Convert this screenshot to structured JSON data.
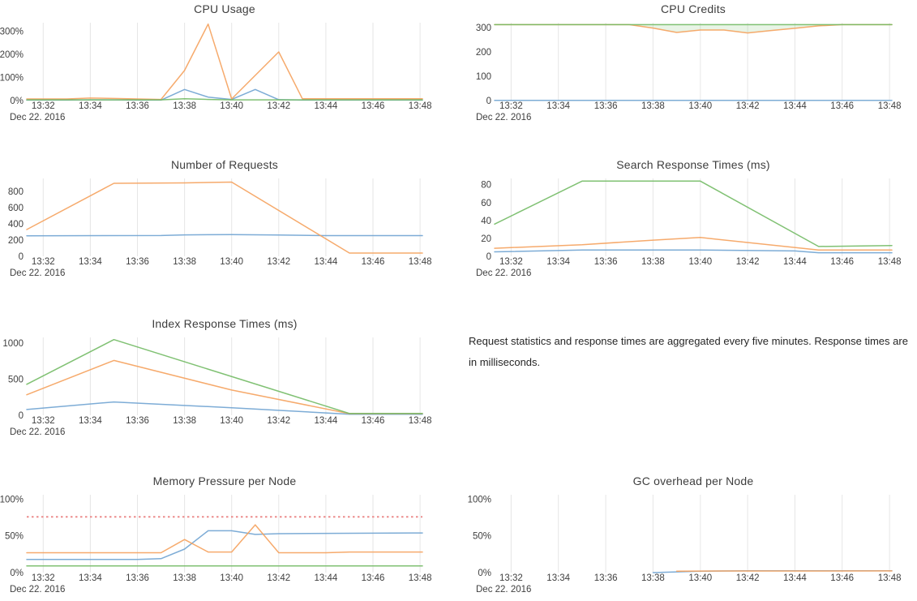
{
  "note": {
    "text": "Request statistics and response times are aggregated every five minutes. Response times are in milliseconds."
  },
  "colors": {
    "blue": "#6fa3d2",
    "orange": "#f5a15c",
    "green": "#72ba64",
    "red": "#ec8b8b",
    "grid": "#e6e6e6",
    "axis_text": "#3f3f3f",
    "title_text": "#3e3e3e"
  },
  "x_axis": {
    "date_label": "Dec 22. 2016",
    "range_minutes": [
      31.3,
      48.1
    ],
    "ticks": [
      {
        "minute": 32,
        "label": "13:32"
      },
      {
        "minute": 34,
        "label": "13:34"
      },
      {
        "minute": 36,
        "label": "13:36"
      },
      {
        "minute": 38,
        "label": "13:38"
      },
      {
        "minute": 40,
        "label": "13:40"
      },
      {
        "minute": 42,
        "label": "13:42"
      },
      {
        "minute": 44,
        "label": "13:44"
      },
      {
        "minute": 46,
        "label": "13:46"
      },
      {
        "minute": 48,
        "label": "13:48"
      }
    ]
  },
  "chart_data": [
    {
      "type": "line",
      "title": "CPU Usage",
      "grid": "vertical-only",
      "legend": "none",
      "ylim": [
        0,
        336
      ],
      "yticks": [
        {
          "v": 0,
          "label": "0%"
        },
        {
          "v": 100,
          "label": "100%"
        },
        {
          "v": 200,
          "label": "200%"
        },
        {
          "v": 300,
          "label": "300%"
        }
      ],
      "series": [
        {
          "name": "series-blue",
          "color": "blue",
          "points": [
            [
              31.3,
              2
            ],
            [
              33,
              2
            ],
            [
              34,
              3
            ],
            [
              36,
              2
            ],
            [
              37,
              2
            ],
            [
              38,
              48
            ],
            [
              39,
              15
            ],
            [
              40,
              5
            ],
            [
              41,
              48
            ],
            [
              42,
              4
            ],
            [
              43,
              2
            ],
            [
              48.1,
              2
            ]
          ]
        },
        {
          "name": "series-orange",
          "color": "orange",
          "points": [
            [
              31.3,
              7
            ],
            [
              33,
              7
            ],
            [
              34,
              11
            ],
            [
              35,
              9
            ],
            [
              36,
              7
            ],
            [
              37,
              5
            ],
            [
              38,
              130
            ],
            [
              39,
              330
            ],
            [
              40,
              7
            ],
            [
              42,
              210
            ],
            [
              43,
              8
            ],
            [
              48.1,
              8
            ]
          ]
        },
        {
          "name": "series-green",
          "color": "green",
          "points": [
            [
              31.3,
              3
            ],
            [
              37,
              3
            ],
            [
              38,
              8
            ],
            [
              39,
              5
            ],
            [
              40,
              3
            ],
            [
              48.1,
              3
            ]
          ]
        }
      ]
    },
    {
      "type": "line",
      "title": "CPU Credits",
      "grid": "vertical-only",
      "legend": "none",
      "ylim": [
        0,
        320
      ],
      "yticks": [
        {
          "v": 0,
          "label": "0"
        },
        {
          "v": 100,
          "label": "100"
        },
        {
          "v": 200,
          "label": "200"
        },
        {
          "v": 300,
          "label": "300"
        }
      ],
      "fill_between": {
        "upper": 2,
        "lower": 1,
        "color": "rgba(114,186,100,0.16)"
      },
      "series": [
        {
          "name": "series-blue",
          "color": "blue",
          "points": [
            [
              31.3,
              1
            ],
            [
              48.1,
              1
            ]
          ]
        },
        {
          "name": "series-orange",
          "color": "orange",
          "points": [
            [
              31.3,
              312
            ],
            [
              37,
              312
            ],
            [
              38,
              298
            ],
            [
              39,
              280
            ],
            [
              40,
              290
            ],
            [
              41,
              290
            ],
            [
              42,
              278
            ],
            [
              43,
              288
            ],
            [
              44,
              297
            ],
            [
              45,
              307
            ],
            [
              46,
              312
            ],
            [
              48.1,
              312
            ]
          ]
        },
        {
          "name": "series-green",
          "color": "green",
          "points": [
            [
              31.3,
              312
            ],
            [
              48.1,
              312
            ]
          ]
        }
      ]
    },
    {
      "type": "line",
      "title": "Number of Requests",
      "grid": "vertical-only",
      "legend": "none",
      "ylim": [
        0,
        960
      ],
      "yticks": [
        {
          "v": 0,
          "label": "0"
        },
        {
          "v": 200,
          "label": "200"
        },
        {
          "v": 400,
          "label": "400"
        },
        {
          "v": 600,
          "label": "600"
        },
        {
          "v": 800,
          "label": "800"
        }
      ],
      "series": [
        {
          "name": "series-blue",
          "color": "blue",
          "points": [
            [
              31.3,
              253
            ],
            [
              37,
              256
            ],
            [
              38,
              264
            ],
            [
              40,
              268
            ],
            [
              42,
              262
            ],
            [
              44,
              255
            ],
            [
              48.1,
              255
            ]
          ]
        },
        {
          "name": "series-orange",
          "color": "orange",
          "points": [
            [
              31.3,
              330
            ],
            [
              35,
              900
            ],
            [
              38,
              905
            ],
            [
              40,
              915
            ],
            [
              45,
              40
            ],
            [
              48.1,
              40
            ]
          ]
        }
      ]
    },
    {
      "type": "line",
      "title": "Search Response Times (ms)",
      "grid": "vertical-only",
      "legend": "none",
      "ylim": [
        0,
        87
      ],
      "yticks": [
        {
          "v": 0,
          "label": "0"
        },
        {
          "v": 20,
          "label": "20"
        },
        {
          "v": 40,
          "label": "40"
        },
        {
          "v": 60,
          "label": "60"
        },
        {
          "v": 80,
          "label": "80"
        }
      ],
      "series": [
        {
          "name": "series-blue",
          "color": "blue",
          "points": [
            [
              31.3,
              5
            ],
            [
              35,
              7
            ],
            [
              40,
              7
            ],
            [
              44,
              6
            ],
            [
              45,
              4
            ],
            [
              48.1,
              4
            ]
          ]
        },
        {
          "name": "series-orange",
          "color": "orange",
          "points": [
            [
              31.3,
              9
            ],
            [
              35,
              13
            ],
            [
              38,
              18
            ],
            [
              40,
              21
            ],
            [
              45,
              7
            ],
            [
              48.1,
              7
            ]
          ]
        },
        {
          "name": "series-green",
          "color": "green",
          "points": [
            [
              31.3,
              36
            ],
            [
              35,
              84
            ],
            [
              40,
              84
            ],
            [
              45,
              11
            ],
            [
              48.1,
              12
            ]
          ]
        }
      ]
    },
    {
      "type": "line",
      "title": "Index Response Times (ms)",
      "grid": "vertical-only",
      "legend": "none",
      "ylim": [
        0,
        1080
      ],
      "yticks": [
        {
          "v": 0,
          "label": "0"
        },
        {
          "v": 500,
          "label": "500"
        },
        {
          "v": 1000,
          "label": "1000"
        }
      ],
      "series": [
        {
          "name": "series-blue",
          "color": "blue",
          "points": [
            [
              31.3,
              80
            ],
            [
              35,
              185
            ],
            [
              40,
              105
            ],
            [
              45,
              15
            ],
            [
              48.1,
              15
            ]
          ]
        },
        {
          "name": "series-orange",
          "color": "orange",
          "points": [
            [
              31.3,
              285
            ],
            [
              35,
              760
            ],
            [
              40,
              350
            ],
            [
              45,
              22
            ],
            [
              48.1,
              22
            ]
          ]
        },
        {
          "name": "series-green",
          "color": "green",
          "points": [
            [
              31.3,
              430
            ],
            [
              35,
              1050
            ],
            [
              45,
              25
            ],
            [
              48.1,
              25
            ]
          ]
        }
      ]
    },
    {
      "type": "line",
      "title": "Memory Pressure per Node",
      "grid": "vertical-only",
      "legend": "none",
      "ylim": [
        0,
        106
      ],
      "yticks": [
        {
          "v": 0,
          "label": "0%"
        },
        {
          "v": 50,
          "label": "50%"
        },
        {
          "v": 100,
          "label": "100%"
        }
      ],
      "threshold": {
        "v": 76,
        "color": "red",
        "style": "dashed"
      },
      "series": [
        {
          "name": "series-blue",
          "color": "blue",
          "points": [
            [
              31.3,
              18
            ],
            [
              36,
              18
            ],
            [
              37,
              19
            ],
            [
              38,
              32
            ],
            [
              39,
              57
            ],
            [
              40,
              57
            ],
            [
              41,
              52
            ],
            [
              42,
              53
            ],
            [
              48.1,
              54
            ]
          ]
        },
        {
          "name": "series-orange",
          "color": "orange",
          "points": [
            [
              31.3,
              27
            ],
            [
              37,
              27
            ],
            [
              38,
              45
            ],
            [
              39,
              28
            ],
            [
              40,
              28
            ],
            [
              41,
              65
            ],
            [
              42,
              27
            ],
            [
              44,
              27
            ],
            [
              45,
              28
            ],
            [
              48.1,
              28
            ]
          ]
        },
        {
          "name": "series-green",
          "color": "green",
          "points": [
            [
              31.3,
              9
            ],
            [
              48.1,
              9
            ]
          ]
        }
      ]
    },
    {
      "type": "line",
      "title": "GC overhead per Node",
      "grid": "vertical-only",
      "legend": "none",
      "ylim": [
        0,
        106
      ],
      "yticks": [
        {
          "v": 0,
          "label": "0%"
        },
        {
          "v": 50,
          "label": "50%"
        },
        {
          "v": 100,
          "label": "100%"
        }
      ],
      "series": [
        {
          "name": "series-blue",
          "color": "blue",
          "points": [
            [
              38,
              0
            ],
            [
              39,
              1
            ],
            [
              40,
              2
            ],
            [
              42,
              2.5
            ],
            [
              48.1,
              2.5
            ]
          ]
        },
        {
          "name": "series-orange",
          "color": "orange",
          "points": [
            [
              39,
              2
            ],
            [
              41,
              2.2
            ],
            [
              48.1,
              2.3
            ]
          ]
        }
      ]
    }
  ]
}
